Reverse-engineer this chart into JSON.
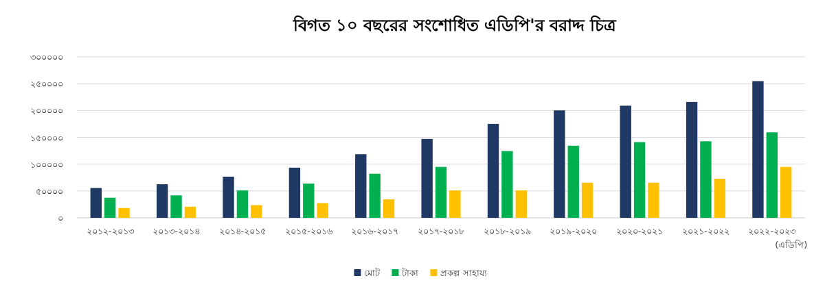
{
  "chart_data": {
    "type": "bar",
    "title": "বিগত ১০ বছরের সংশোধিত এডিপি'র বরাদ্দ চিত্র",
    "categories": [
      "২০১২-২০১৩",
      "২০১৩-২০১৪",
      "২০১৪-২০১৫",
      "২০১৫-২০১৬",
      "২০১৬-২০১৭",
      "২০১৭-২০১৮",
      "২০১৮-২০১৯",
      "২০১৯-২০২০",
      "২০২০-২০২১",
      "২০২১-২০২২",
      "২০২২-২০২৩\n(এডিপি)"
    ],
    "series": [
      {
        "name": "মোট",
        "color": "#203864",
        "values": [
          55600,
          62500,
          76700,
          93400,
          118500,
          147000,
          175000,
          200200,
          209000,
          215900,
          254800
        ]
      },
      {
        "name": "টাকা",
        "color": "#00b050",
        "values": [
          37400,
          41800,
          51100,
          63900,
          82100,
          94900,
          124400,
          134300,
          141100,
          142600,
          159300
        ]
      },
      {
        "name": "প্রকল্প সাহায্য",
        "color": "#ffc000",
        "values": [
          18200,
          20700,
          23600,
          27500,
          34400,
          51100,
          51100,
          65400,
          65400,
          72800,
          94900
        ]
      }
    ],
    "ylim": [
      0,
      300000
    ],
    "yticks": [
      {
        "value": 0,
        "label": "০"
      },
      {
        "value": 50000,
        "label": "৫০০০০"
      },
      {
        "value": 100000,
        "label": "১০০০০০"
      },
      {
        "value": 150000,
        "label": "১৫০০০০"
      },
      {
        "value": 200000,
        "label": "২০০০০০"
      },
      {
        "value": 250000,
        "label": "২৫০০০০"
      },
      {
        "value": 300000,
        "label": "৩০০০০০"
      }
    ],
    "grid": "y",
    "legend": "bottom"
  }
}
